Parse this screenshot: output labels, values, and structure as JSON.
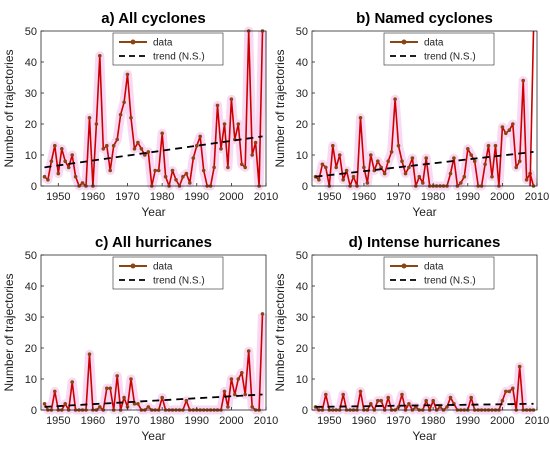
{
  "colors": {
    "data_line": "#cc0000",
    "marker": "#8b4513",
    "trend": "#000000",
    "highlight_marker": "#2e8b57"
  },
  "chart_data": [
    {
      "type": "line",
      "title": "a) All cyclones",
      "xlabel": "Year",
      "ylabel": "Number of trajectories",
      "xlim": [
        1945,
        2010
      ],
      "ylim": [
        0,
        50
      ],
      "xticks": [
        "1950",
        "1960",
        "1970",
        "1980",
        "1990",
        "2000",
        "2010"
      ],
      "yticks": [
        "0",
        "10",
        "20",
        "30",
        "40",
        "50"
      ],
      "legend": [
        "data",
        "trend (N.S.)"
      ],
      "legend_loc": "top-center",
      "series": [
        {
          "name": "data",
          "x": [
            1946,
            1947,
            1948,
            1949,
            1950,
            1951,
            1952,
            1953,
            1954,
            1955,
            1956,
            1957,
            1958,
            1959,
            1960,
            1961,
            1962,
            1963,
            1964,
            1965,
            1966,
            1967,
            1968,
            1969,
            1970,
            1971,
            1972,
            1973,
            1974,
            1975,
            1976,
            1977,
            1978,
            1979,
            1980,
            1981,
            1982,
            1983,
            1984,
            1985,
            1986,
            1987,
            1988,
            1989,
            1990,
            1991,
            1992,
            1993,
            1994,
            1995,
            1996,
            1997,
            1998,
            1999,
            2000,
            2001,
            2002,
            2003,
            2004,
            2005,
            2006,
            2007,
            2008,
            2009
          ],
          "y": [
            3,
            2,
            8,
            13,
            4,
            12,
            8,
            6,
            10,
            3,
            0,
            1,
            0,
            22,
            0,
            20,
            42,
            12,
            13,
            5,
            13,
            15,
            23,
            27,
            36,
            22,
            12,
            14,
            12,
            10,
            11,
            0,
            5,
            5,
            17,
            3,
            0,
            5,
            2,
            0,
            3,
            4,
            1,
            9,
            13,
            16,
            5,
            0,
            0,
            6,
            26,
            12,
            20,
            6,
            28,
            15,
            20,
            7,
            6,
            50,
            10,
            14,
            0,
            50
          ]
        },
        {
          "name": "trend (N.S.)",
          "x": [
            1946,
            2009
          ],
          "y": [
            6,
            16
          ]
        }
      ]
    },
    {
      "type": "line",
      "title": "b) Named cyclones",
      "xlabel": "Year",
      "ylabel": "Number of trajectories",
      "xlim": [
        1945,
        2010
      ],
      "ylim": [
        0,
        50
      ],
      "xticks": [
        "1950",
        "1960",
        "1970",
        "1980",
        "1990",
        "2000",
        "2010"
      ],
      "yticks": [
        "0",
        "10",
        "20",
        "30",
        "40",
        "50"
      ],
      "legend": [
        "data",
        "trend (N.S.)"
      ],
      "legend_loc": "top-center",
      "series": [
        {
          "name": "data",
          "x": [
            1946,
            1947,
            1948,
            1949,
            1950,
            1951,
            1952,
            1953,
            1954,
            1955,
            1956,
            1957,
            1958,
            1959,
            1960,
            1961,
            1962,
            1963,
            1964,
            1965,
            1966,
            1967,
            1968,
            1969,
            1970,
            1971,
            1972,
            1973,
            1974,
            1975,
            1976,
            1977,
            1978,
            1979,
            1980,
            1981,
            1982,
            1983,
            1984,
            1985,
            1986,
            1987,
            1988,
            1989,
            1990,
            1991,
            1992,
            1993,
            1994,
            1995,
            1996,
            1997,
            1998,
            1999,
            2000,
            2001,
            2002,
            2003,
            2004,
            2005,
            2006,
            2007,
            2008,
            2009
          ],
          "y": [
            3,
            2,
            7,
            6,
            0,
            13,
            6,
            10,
            2,
            5,
            0,
            3,
            0,
            22,
            6,
            1,
            10,
            5,
            8,
            6,
            4,
            8,
            11,
            28,
            13,
            8,
            4,
            6,
            9,
            0,
            3,
            1,
            9,
            0,
            0,
            0,
            0,
            0,
            0,
            4,
            9,
            0,
            1,
            3,
            12,
            10,
            8,
            0,
            0,
            7,
            13,
            3,
            13,
            0,
            19,
            17,
            18,
            20,
            6,
            8,
            34,
            2,
            4,
            0
          ]
        },
        {
          "name": "trend (N.S.)",
          "x": [
            1946,
            2009
          ],
          "y": [
            3,
            11
          ]
        },
        {
          "name": "",
          "x": [
            2008,
            2009
          ],
          "y": [
            0,
            50
          ]
        }
      ]
    },
    {
      "type": "line",
      "title": "c) All hurricanes",
      "xlabel": "Year",
      "ylabel": "Number of trajectories",
      "xlim": [
        1945,
        2010
      ],
      "ylim": [
        0,
        50
      ],
      "xticks": [
        "1950",
        "1960",
        "1970",
        "1980",
        "1990",
        "2000",
        "2010"
      ],
      "yticks": [
        "0",
        "10",
        "20",
        "30",
        "40",
        "50"
      ],
      "legend": [
        "data",
        "trend (N.S.)"
      ],
      "legend_loc": "top-center",
      "series": [
        {
          "name": "data",
          "x": [
            1946,
            1947,
            1948,
            1949,
            1950,
            1951,
            1952,
            1953,
            1954,
            1955,
            1956,
            1957,
            1958,
            1959,
            1960,
            1961,
            1962,
            1963,
            1964,
            1965,
            1966,
            1967,
            1968,
            1969,
            1970,
            1971,
            1972,
            1973,
            1974,
            1975,
            1976,
            1977,
            1978,
            1979,
            1980,
            1981,
            1982,
            1983,
            1984,
            1985,
            1986,
            1987,
            1988,
            1989,
            1990,
            1991,
            1992,
            1993,
            1994,
            1995,
            1996,
            1997,
            1998,
            1999,
            2000,
            2001,
            2002,
            2003,
            2004,
            2005,
            2006,
            2007,
            2008,
            2009
          ],
          "y": [
            2,
            0,
            0,
            6,
            0,
            0,
            2,
            0,
            9,
            0,
            0,
            0,
            0,
            18,
            0,
            0,
            1,
            0,
            7,
            7,
            0,
            11,
            0,
            4,
            1,
            10,
            2,
            2,
            0,
            0,
            1,
            0,
            0,
            0,
            4,
            0,
            0,
            0,
            0,
            0,
            0,
            3,
            0,
            0,
            0,
            0,
            0,
            0,
            0,
            0,
            0,
            0,
            6,
            1,
            10,
            5,
            10,
            12,
            5,
            19,
            1,
            0,
            0,
            31
          ]
        },
        {
          "name": "trend (N.S.)",
          "x": [
            1946,
            2009
          ],
          "y": [
            1,
            5
          ]
        }
      ]
    },
    {
      "type": "line",
      "title": "d) Intense hurricanes",
      "xlabel": "Year",
      "ylabel": "Number of trajectories",
      "xlim": [
        1945,
        2010
      ],
      "ylim": [
        0,
        50
      ],
      "xticks": [
        "1950",
        "1960",
        "1970",
        "1980",
        "1990",
        "2000",
        "2010"
      ],
      "yticks": [
        "0",
        "10",
        "20",
        "30",
        "40",
        "50"
      ],
      "legend": [
        "data",
        "trend (N.S.)"
      ],
      "legend_loc": "top-center",
      "series": [
        {
          "name": "data",
          "x": [
            1946,
            1947,
            1948,
            1949,
            1950,
            1951,
            1952,
            1953,
            1954,
            1955,
            1956,
            1957,
            1958,
            1959,
            1960,
            1961,
            1962,
            1963,
            1964,
            1965,
            1966,
            1967,
            1968,
            1969,
            1970,
            1971,
            1972,
            1973,
            1974,
            1975,
            1976,
            1977,
            1978,
            1979,
            1980,
            1981,
            1982,
            1983,
            1984,
            1985,
            1986,
            1987,
            1988,
            1989,
            1990,
            1991,
            1992,
            1993,
            1994,
            1995,
            1996,
            1997,
            1998,
            1999,
            2000,
            2001,
            2002,
            2003,
            2004,
            2005,
            2006,
            2007,
            2008,
            2009
          ],
          "y": [
            1,
            0,
            0,
            5,
            0,
            0,
            0,
            0,
            5,
            0,
            0,
            0,
            0,
            6,
            0,
            0,
            2,
            0,
            3,
            3,
            0,
            4,
            0,
            0,
            1,
            5,
            0,
            2,
            0,
            1,
            0,
            0,
            3,
            0,
            3,
            0,
            1,
            0,
            1,
            4,
            2,
            0,
            0,
            0,
            0,
            4,
            0,
            0,
            0,
            0,
            0,
            0,
            0,
            0,
            3,
            6,
            6,
            7,
            0,
            14,
            0,
            0,
            0,
            0
          ]
        },
        {
          "name": "trend (N.S.)",
          "x": [
            1946,
            2009
          ],
          "y": [
            1,
            2
          ]
        }
      ]
    }
  ]
}
